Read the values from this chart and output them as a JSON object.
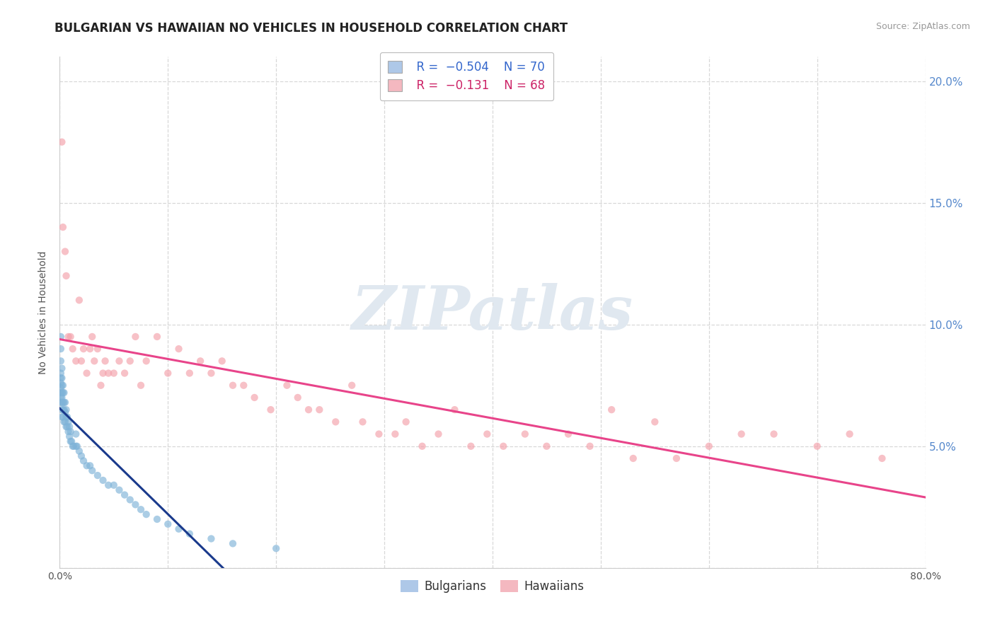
{
  "title": "BULGARIAN VS HAWAIIAN NO VEHICLES IN HOUSEHOLD CORRELATION CHART",
  "source": "Source: ZipAtlas.com",
  "ylabel": "No Vehicles in Household",
  "xlim": [
    0.0,
    0.8
  ],
  "ylim": [
    0.0,
    0.21
  ],
  "xticks": [
    0.0,
    0.1,
    0.2,
    0.3,
    0.4,
    0.5,
    0.6,
    0.7,
    0.8
  ],
  "yticks": [
    0.0,
    0.05,
    0.1,
    0.15,
    0.2
  ],
  "bg_color": "#ffffff",
  "grid_color": "#d8d8d8",
  "watermark_text": "ZIPatlas",
  "legend_r1": "  R =  −0.504",
  "legend_n1": "N = 70",
  "legend_r2": "  R =  −0.131",
  "legend_n2": "N = 68",
  "legend_color1": "#aec8e8",
  "legend_color2": "#f4b8c0",
  "scatter_color1": "#7fb3d8",
  "scatter_color2": "#f4a0aa",
  "line_color1": "#1a3a8c",
  "line_color2": "#e8448a",
  "title_fontsize": 12,
  "axis_fontsize": 10,
  "tick_color": "#5588cc",
  "bulgarians_x": [
    0.001,
    0.001,
    0.001,
    0.001,
    0.001,
    0.001,
    0.001,
    0.001,
    0.001,
    0.001,
    0.002,
    0.002,
    0.002,
    0.002,
    0.002,
    0.002,
    0.002,
    0.002,
    0.003,
    0.003,
    0.003,
    0.003,
    0.003,
    0.004,
    0.004,
    0.004,
    0.004,
    0.005,
    0.005,
    0.005,
    0.006,
    0.006,
    0.006,
    0.007,
    0.007,
    0.008,
    0.008,
    0.009,
    0.009,
    0.01,
    0.01,
    0.011,
    0.012,
    0.013,
    0.015,
    0.015,
    0.016,
    0.018,
    0.02,
    0.022,
    0.025,
    0.028,
    0.03,
    0.035,
    0.04,
    0.045,
    0.05,
    0.055,
    0.06,
    0.065,
    0.07,
    0.075,
    0.08,
    0.09,
    0.1,
    0.11,
    0.12,
    0.14,
    0.16,
    0.2
  ],
  "bulgarians_y": [
    0.095,
    0.09,
    0.085,
    0.08,
    0.078,
    0.076,
    0.074,
    0.072,
    0.07,
    0.068,
    0.082,
    0.078,
    0.075,
    0.072,
    0.07,
    0.068,
    0.065,
    0.062,
    0.075,
    0.072,
    0.068,
    0.065,
    0.062,
    0.072,
    0.068,
    0.065,
    0.06,
    0.068,
    0.064,
    0.06,
    0.065,
    0.062,
    0.058,
    0.062,
    0.058,
    0.06,
    0.056,
    0.058,
    0.054,
    0.056,
    0.052,
    0.052,
    0.05,
    0.05,
    0.055,
    0.05,
    0.05,
    0.048,
    0.046,
    0.044,
    0.042,
    0.042,
    0.04,
    0.038,
    0.036,
    0.034,
    0.034,
    0.032,
    0.03,
    0.028,
    0.026,
    0.024,
    0.022,
    0.02,
    0.018,
    0.016,
    0.014,
    0.012,
    0.01,
    0.008
  ],
  "hawaiians_x": [
    0.002,
    0.003,
    0.005,
    0.006,
    0.008,
    0.01,
    0.012,
    0.015,
    0.018,
    0.02,
    0.022,
    0.025,
    0.028,
    0.03,
    0.032,
    0.035,
    0.038,
    0.04,
    0.042,
    0.045,
    0.05,
    0.055,
    0.06,
    0.065,
    0.07,
    0.075,
    0.08,
    0.09,
    0.1,
    0.11,
    0.12,
    0.13,
    0.14,
    0.15,
    0.16,
    0.17,
    0.18,
    0.195,
    0.21,
    0.22,
    0.23,
    0.24,
    0.255,
    0.27,
    0.28,
    0.295,
    0.31,
    0.32,
    0.335,
    0.35,
    0.365,
    0.38,
    0.395,
    0.41,
    0.43,
    0.45,
    0.47,
    0.49,
    0.51,
    0.53,
    0.55,
    0.57,
    0.6,
    0.63,
    0.66,
    0.7,
    0.73,
    0.76
  ],
  "hawaiians_y": [
    0.175,
    0.14,
    0.13,
    0.12,
    0.095,
    0.095,
    0.09,
    0.085,
    0.11,
    0.085,
    0.09,
    0.08,
    0.09,
    0.095,
    0.085,
    0.09,
    0.075,
    0.08,
    0.085,
    0.08,
    0.08,
    0.085,
    0.08,
    0.085,
    0.095,
    0.075,
    0.085,
    0.095,
    0.08,
    0.09,
    0.08,
    0.085,
    0.08,
    0.085,
    0.075,
    0.075,
    0.07,
    0.065,
    0.075,
    0.07,
    0.065,
    0.065,
    0.06,
    0.075,
    0.06,
    0.055,
    0.055,
    0.06,
    0.05,
    0.055,
    0.065,
    0.05,
    0.055,
    0.05,
    0.055,
    0.05,
    0.055,
    0.05,
    0.065,
    0.045,
    0.06,
    0.045,
    0.05,
    0.055,
    0.055,
    0.05,
    0.055,
    0.045
  ]
}
